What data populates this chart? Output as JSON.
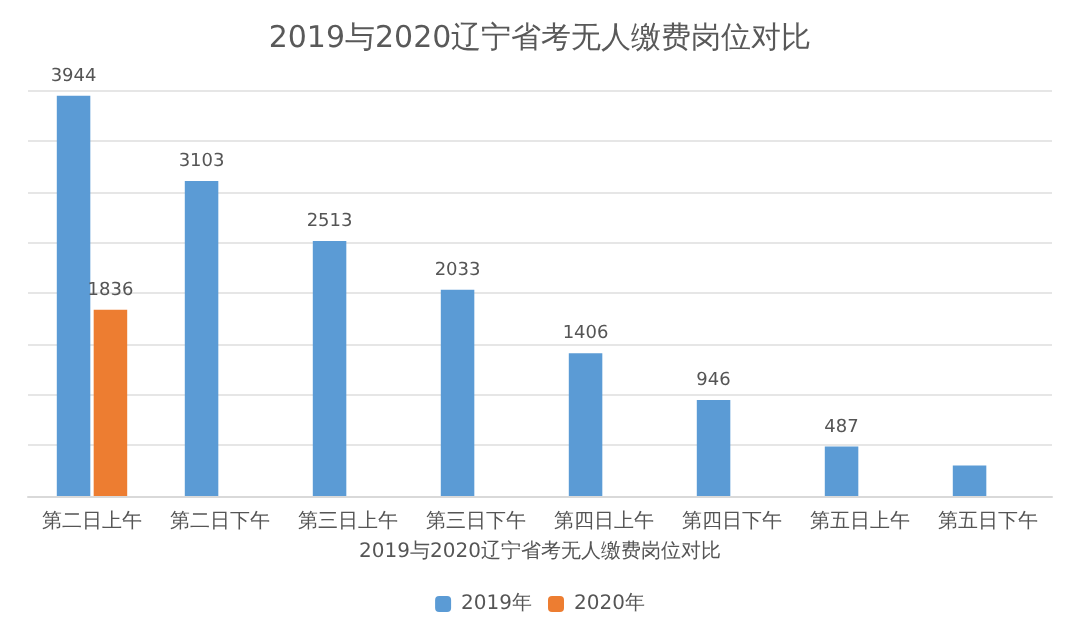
{
  "chart_data": {
    "type": "bar",
    "title": "2019与2020辽宁省考无人缴费岗位对比",
    "xlabel": "2019与2020辽宁省考无人缴费岗位对比",
    "categories": [
      "第二日上午",
      "第二日下午",
      "第三日上午",
      "第三日下午",
      "第四日上午",
      "第四日下午",
      "第五日上午",
      "第五日下午"
    ],
    "series": [
      {
        "name": "2019年",
        "color": "#5b9bd5",
        "values": [
          3944,
          3103,
          2513,
          2033,
          1406,
          946,
          487,
          300
        ],
        "value_labels": [
          "3944",
          "3103",
          "2513",
          "2033",
          "1406",
          "946",
          "487",
          null
        ]
      },
      {
        "name": "2020年",
        "color": "#ed7d31",
        "values": [
          1836,
          null,
          null,
          null,
          null,
          null,
          null,
          null
        ],
        "value_labels": [
          "1836",
          null,
          null,
          null,
          null,
          null,
          null,
          null
        ]
      }
    ],
    "ylim": [
      0,
      4000
    ],
    "yticks": [
      {
        "value": 0,
        "label": null
      },
      {
        "value": 500,
        "label": null
      },
      {
        "value": 1000,
        "label": null
      },
      {
        "value": 1500,
        "label": null
      },
      {
        "value": 2000,
        "label": null
      },
      {
        "value": 2500,
        "label": null
      },
      {
        "value": 3000,
        "label": null
      },
      {
        "value": 3500,
        "label": null
      },
      {
        "value": 4000,
        "label": null
      }
    ],
    "tick_labels": "x",
    "grid": "y",
    "legend": "bottom"
  }
}
